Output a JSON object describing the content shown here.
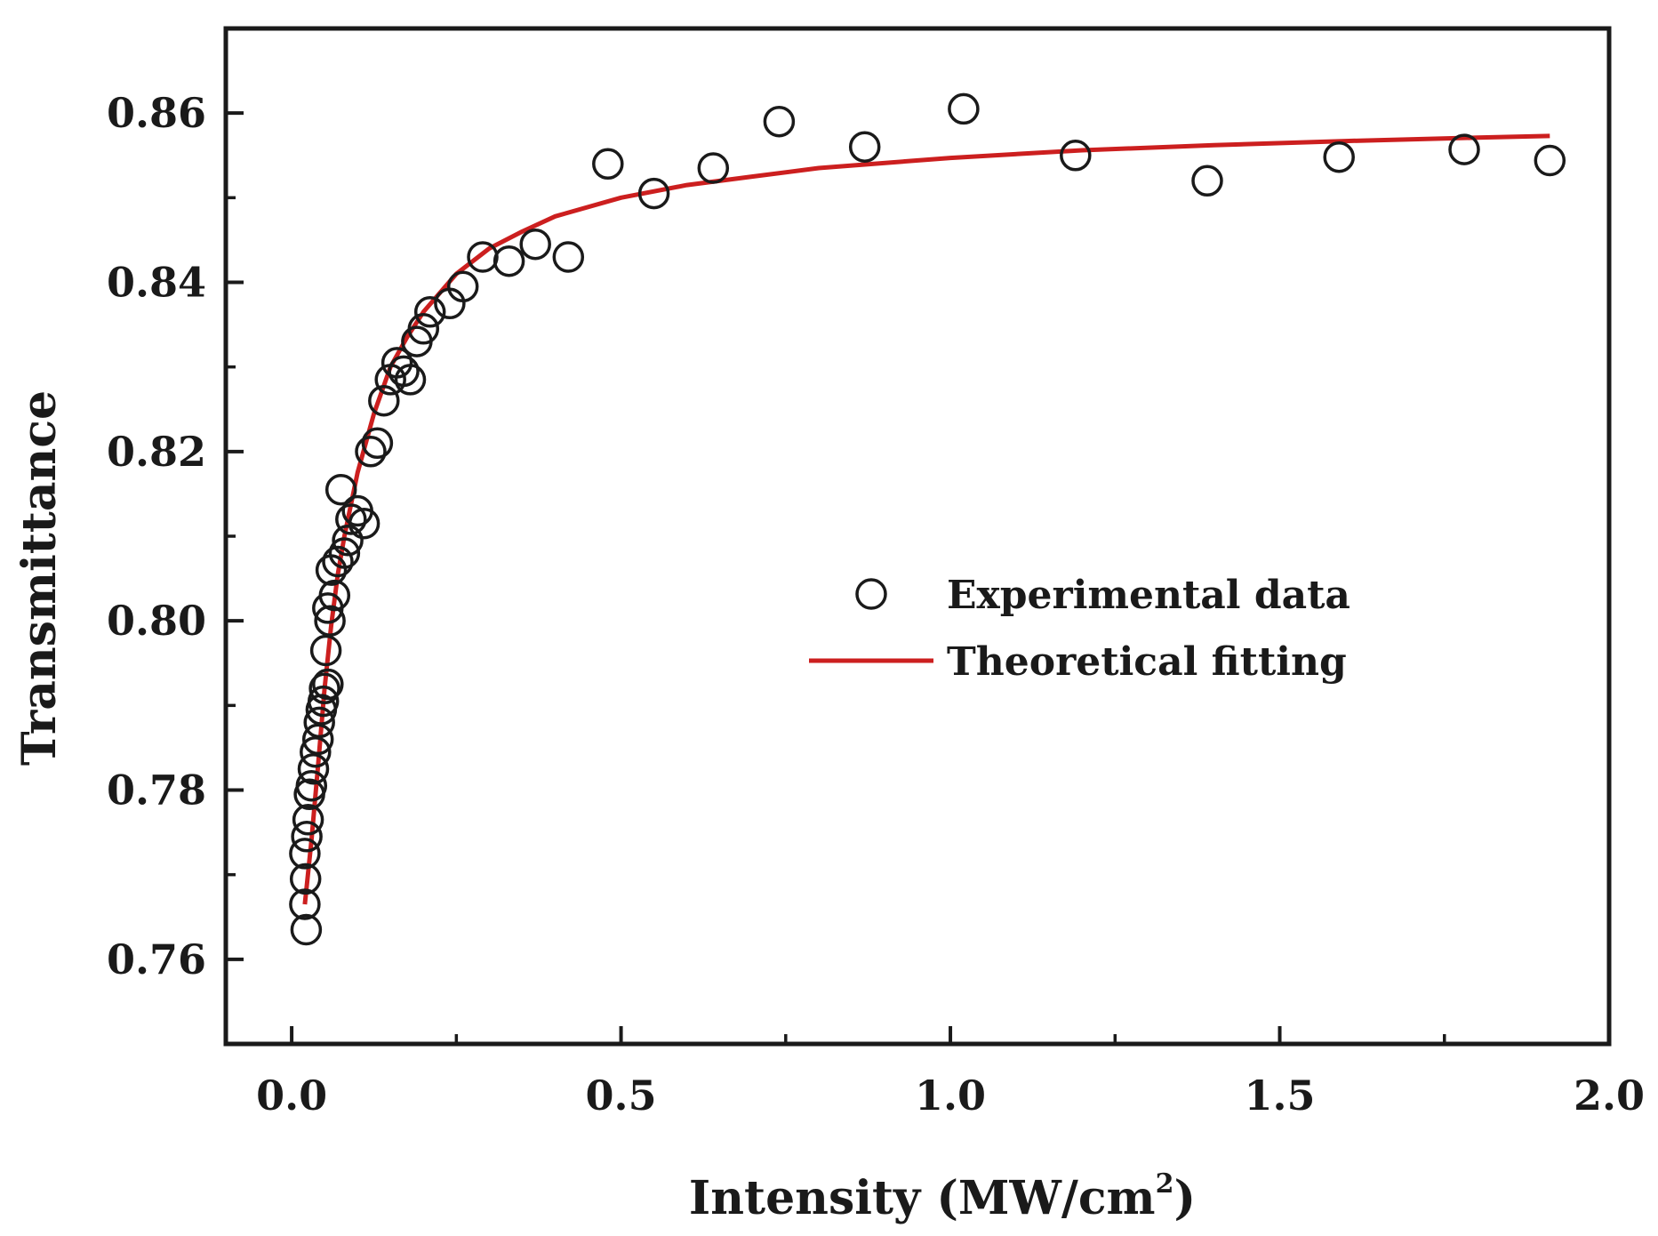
{
  "chart_data": {
    "type": "scatter",
    "title": "",
    "xlabel": "Intensity (MW/cm",
    "xlabel_sup": "2",
    "xlabel_end": ")",
    "ylabel": "Transmittance",
    "xlim": [
      -0.1,
      2.0
    ],
    "ylim": [
      0.75,
      0.87
    ],
    "x_ticks": [
      0.0,
      0.5,
      1.0,
      1.5,
      2.0
    ],
    "x_tick_labels": [
      "0.0",
      "0.5",
      "1.0",
      "1.5",
      "2.0"
    ],
    "x_minor_ticks": [
      0.25,
      0.75,
      1.25,
      1.75
    ],
    "y_ticks": [
      0.76,
      0.78,
      0.8,
      0.82,
      0.84,
      0.86
    ],
    "y_tick_labels": [
      "0.76",
      "0.78",
      "0.80",
      "0.82",
      "0.84",
      "0.86"
    ],
    "y_minor_ticks": [
      0.77,
      0.79,
      0.81,
      0.83,
      0.85
    ],
    "grid": false,
    "legend_position": "center-right",
    "series": [
      {
        "name": "Experimental data",
        "kind": "scatter",
        "marker": "open-circle",
        "color": "#1a1a1a",
        "points": [
          [
            0.022,
            0.7635
          ],
          [
            0.02,
            0.7665
          ],
          [
            0.021,
            0.7695
          ],
          [
            0.02,
            0.7725
          ],
          [
            0.023,
            0.7745
          ],
          [
            0.025,
            0.7765
          ],
          [
            0.027,
            0.7795
          ],
          [
            0.03,
            0.7805
          ],
          [
            0.033,
            0.7825
          ],
          [
            0.036,
            0.7845
          ],
          [
            0.04,
            0.786
          ],
          [
            0.042,
            0.788
          ],
          [
            0.045,
            0.7895
          ],
          [
            0.048,
            0.7905
          ],
          [
            0.05,
            0.792
          ],
          [
            0.055,
            0.7925
          ],
          [
            0.052,
            0.7965
          ],
          [
            0.058,
            0.8
          ],
          [
            0.055,
            0.8015
          ],
          [
            0.065,
            0.803
          ],
          [
            0.06,
            0.806
          ],
          [
            0.07,
            0.807
          ],
          [
            0.08,
            0.808
          ],
          [
            0.085,
            0.8095
          ],
          [
            0.09,
            0.812
          ],
          [
            0.1,
            0.813
          ],
          [
            0.11,
            0.8115
          ],
          [
            0.075,
            0.8155
          ],
          [
            0.12,
            0.82
          ],
          [
            0.13,
            0.821
          ],
          [
            0.14,
            0.826
          ],
          [
            0.15,
            0.8285
          ],
          [
            0.17,
            0.8295
          ],
          [
            0.16,
            0.8305
          ],
          [
            0.18,
            0.8285
          ],
          [
            0.19,
            0.833
          ],
          [
            0.2,
            0.8345
          ],
          [
            0.21,
            0.8365
          ],
          [
            0.24,
            0.8375
          ],
          [
            0.26,
            0.8395
          ],
          [
            0.29,
            0.843
          ],
          [
            0.33,
            0.8425
          ],
          [
            0.37,
            0.8445
          ],
          [
            0.42,
            0.843
          ],
          [
            0.48,
            0.854
          ],
          [
            0.55,
            0.8505
          ],
          [
            0.64,
            0.8535
          ],
          [
            0.74,
            0.859
          ],
          [
            0.87,
            0.856
          ],
          [
            1.02,
            0.8605
          ],
          [
            1.19,
            0.855
          ],
          [
            1.39,
            0.852
          ],
          [
            1.59,
            0.8548
          ],
          [
            1.78,
            0.8557
          ],
          [
            1.91,
            0.8544
          ]
        ]
      },
      {
        "name": "Theoretical fitting",
        "kind": "line",
        "color": "#cc1f1f",
        "points": [
          [
            0.02,
            0.7665
          ],
          [
            0.03,
            0.774
          ],
          [
            0.04,
            0.7828
          ],
          [
            0.05,
            0.792
          ],
          [
            0.06,
            0.7995
          ],
          [
            0.07,
            0.8055
          ],
          [
            0.08,
            0.81
          ],
          [
            0.1,
            0.8175
          ],
          [
            0.125,
            0.8245
          ],
          [
            0.15,
            0.83
          ],
          [
            0.175,
            0.8335
          ],
          [
            0.2,
            0.8365
          ],
          [
            0.25,
            0.841
          ],
          [
            0.3,
            0.844
          ],
          [
            0.35,
            0.846
          ],
          [
            0.4,
            0.8478
          ],
          [
            0.5,
            0.85
          ],
          [
            0.6,
            0.8515
          ],
          [
            0.7,
            0.8525
          ],
          [
            0.8,
            0.8535
          ],
          [
            1.0,
            0.8547
          ],
          [
            1.2,
            0.8556
          ],
          [
            1.4,
            0.8562
          ],
          [
            1.6,
            0.8567
          ],
          [
            1.8,
            0.8571
          ],
          [
            1.91,
            0.8573
          ]
        ]
      }
    ]
  }
}
